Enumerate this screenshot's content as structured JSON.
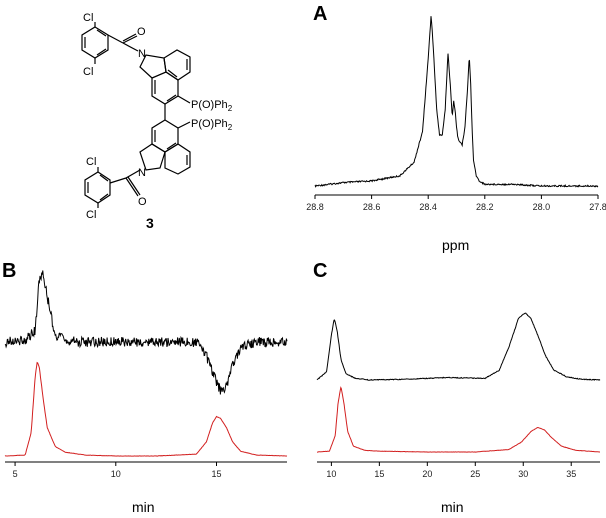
{
  "chart_data": [
    {
      "id": "A",
      "type": "line",
      "panel_label": "A",
      "xlabel": "ppm",
      "xlim": [
        28.8,
        27.8
      ],
      "x_reversed": true,
      "xticks": [
        "28.8",
        "28.6",
        "28.4",
        "28.2",
        "28.0",
        "27.8"
      ],
      "series": [
        {
          "color": "#000000",
          "x": [
            28.8,
            28.7,
            28.6,
            28.5,
            28.45,
            28.42,
            28.4,
            28.39,
            28.385,
            28.37,
            28.36,
            28.35,
            28.34,
            28.33,
            28.32,
            28.315,
            28.31,
            28.305,
            28.3,
            28.295,
            28.28,
            28.27,
            28.26,
            28.255,
            28.25,
            28.245,
            28.24,
            28.23,
            28.22,
            28.2,
            28.1,
            28.0,
            27.9,
            27.8
          ],
          "y": [
            0.0,
            0.02,
            0.03,
            0.06,
            0.14,
            0.32,
            0.75,
            1.0,
            0.9,
            0.45,
            0.3,
            0.3,
            0.45,
            0.78,
            0.55,
            0.4,
            0.5,
            0.45,
            0.35,
            0.28,
            0.24,
            0.35,
            0.6,
            0.77,
            0.6,
            0.35,
            0.15,
            0.06,
            0.03,
            0.01,
            0.01,
            0.0,
            0.0,
            0.0
          ]
        }
      ]
    },
    {
      "id": "B",
      "type": "line",
      "panel_label": "B",
      "xlabel": "min",
      "xlim": [
        4.5,
        18.5
      ],
      "xticks": [
        "5",
        "10",
        "15"
      ],
      "series": [
        {
          "color": "#000000",
          "x": [
            4.5,
            5.5,
            6.0,
            6.2,
            6.4,
            6.7,
            7.0,
            7.5,
            8.0,
            10,
            12,
            14,
            14.5,
            15.0,
            15.2,
            15.5,
            15.8,
            16.2,
            17,
            18.5
          ],
          "y": [
            0.0,
            0.02,
            0.1,
            0.55,
            0.6,
            0.3,
            0.05,
            0.02,
            0.0,
            0.0,
            0.0,
            0.0,
            -0.12,
            -0.35,
            -0.42,
            -0.38,
            -0.2,
            -0.05,
            0.0,
            0.0
          ]
        },
        {
          "color": "#d21f1f",
          "x": [
            4.5,
            5.5,
            5.8,
            6.0,
            6.1,
            6.2,
            6.4,
            6.6,
            7.0,
            7.5,
            8.5,
            10,
            12,
            14,
            14.5,
            14.8,
            15.0,
            15.2,
            15.5,
            15.8,
            16.2,
            17,
            18.5
          ],
          "y": [
            0.0,
            0.01,
            0.25,
            0.85,
            1.0,
            0.95,
            0.6,
            0.3,
            0.1,
            0.04,
            0.01,
            0.0,
            0.0,
            0.02,
            0.15,
            0.35,
            0.42,
            0.4,
            0.3,
            0.15,
            0.05,
            0.01,
            0.0
          ]
        }
      ]
    },
    {
      "id": "C",
      "type": "line",
      "panel_label": "C",
      "xlabel": "min",
      "xlim": [
        8.5,
        38
      ],
      "xticks": [
        "10",
        "15",
        "20",
        "25",
        "30",
        "35"
      ],
      "series": [
        {
          "color": "#000000",
          "x": [
            8.5,
            9.5,
            10.0,
            10.3,
            10.6,
            11.0,
            11.5,
            12.5,
            14,
            18,
            22,
            26,
            27.5,
            28.5,
            29.5,
            30.2,
            30.8,
            31.5,
            32.3,
            33.2,
            34.5,
            36,
            38
          ],
          "y": [
            0.0,
            0.1,
            0.55,
            0.75,
            0.6,
            0.25,
            0.08,
            0.02,
            0.0,
            0.01,
            0.03,
            0.02,
            0.12,
            0.4,
            0.75,
            0.82,
            0.75,
            0.55,
            0.3,
            0.12,
            0.04,
            0.01,
            0.0
          ]
        },
        {
          "color": "#d21f1f",
          "x": [
            8.5,
            9.8,
            10.4,
            10.7,
            11.0,
            11.3,
            11.7,
            12.3,
            13.5,
            15,
            20,
            25,
            28.5,
            29.8,
            30.8,
            31.5,
            32.2,
            33.0,
            34,
            35.5,
            38
          ],
          "y": [
            0.0,
            0.01,
            0.2,
            0.6,
            0.8,
            0.6,
            0.25,
            0.07,
            0.02,
            0.01,
            0.0,
            0.0,
            0.03,
            0.12,
            0.25,
            0.3,
            0.27,
            0.17,
            0.07,
            0.02,
            0.0
          ]
        }
      ]
    }
  ],
  "structure": {
    "compound_number": "3",
    "labels": {
      "cl1": "Cl",
      "cl2": "Cl",
      "cl3": "Cl",
      "cl4": "Cl",
      "o1": "O",
      "o2": "O",
      "n1": "N",
      "n2": "N",
      "pop_upper": "P(O)Ph",
      "pop_upper_sub": "2",
      "pop_lower": "P(O)Ph",
      "pop_lower_sub": "2"
    }
  }
}
